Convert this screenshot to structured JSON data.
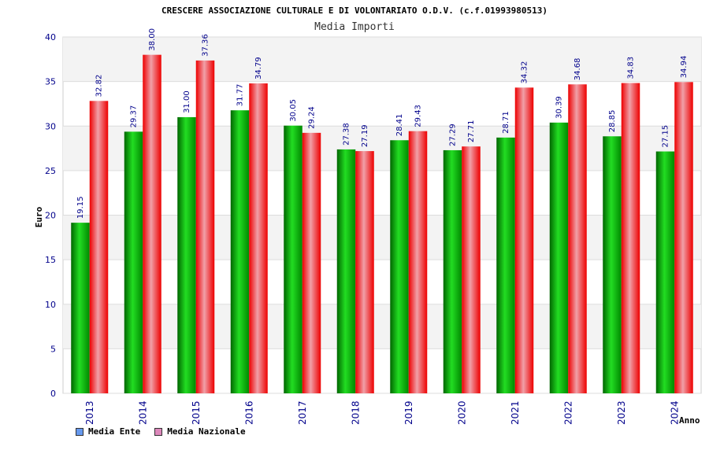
{
  "chart_data": {
    "type": "bar",
    "title": "CRESCERE ASSOCIAZIONE CULTURALE E DI VOLONTARIATO O.D.V. (c.f.01993980513)",
    "subtitle": "Media Importi",
    "xlabel": "Anno",
    "ylabel": "Euro",
    "ylim": [
      0,
      40
    ],
    "yticks": [
      0,
      5,
      10,
      15,
      20,
      25,
      30,
      35,
      40
    ],
    "categories": [
      "2013",
      "2014",
      "2015",
      "2016",
      "2017",
      "2018",
      "2019",
      "2020",
      "2021",
      "2022",
      "2023",
      "2024"
    ],
    "series": [
      {
        "name": "Media Ente",
        "color": "#00aa00",
        "legend_color": "#6699ee",
        "values": [
          19.15,
          29.37,
          31.0,
          31.77,
          30.05,
          27.38,
          28.41,
          27.29,
          28.71,
          30.39,
          28.85,
          27.15
        ],
        "labels": [
          "19.15",
          "29.37",
          "31.00",
          "31.77",
          "30.05",
          "27.38",
          "28.41",
          "27.29",
          "28.71",
          "30.39",
          "28.85",
          "27.15"
        ]
      },
      {
        "name": "Media Nazionale",
        "color": "#ee0000",
        "legend_color": "#dd88bb",
        "values": [
          32.82,
          38.0,
          37.36,
          34.79,
          29.24,
          27.19,
          29.43,
          27.71,
          34.32,
          34.68,
          34.83,
          34.94
        ],
        "labels": [
          "32.82",
          "38.00",
          "37.36",
          "34.79",
          "29.24",
          "27.19",
          "29.43",
          "27.71",
          "34.32",
          "34.68",
          "34.83",
          "34.94"
        ]
      }
    ],
    "grid": true,
    "legend_position": "bottom-left"
  }
}
